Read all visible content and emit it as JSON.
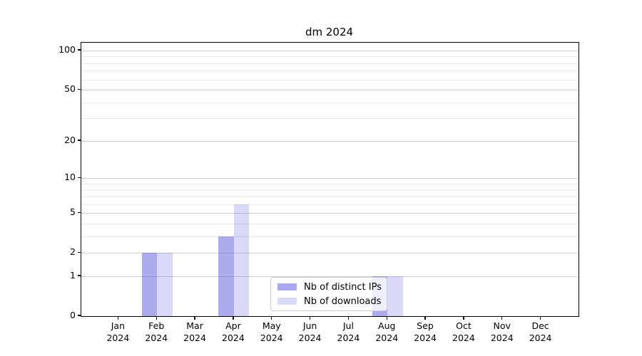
{
  "chart_data": {
    "type": "bar",
    "title": "dm 2024",
    "categories": [
      "Jan",
      "Feb",
      "Mar",
      "Apr",
      "May",
      "Jun",
      "Jul",
      "Aug",
      "Sep",
      "Oct",
      "Nov",
      "Dec"
    ],
    "category_year": "2024",
    "series": [
      {
        "name": "Nb of distinct IPs",
        "fill": "rgba(102,102,224,0.55)",
        "legend_color": "#a9a9f1",
        "values": [
          0,
          2,
          0,
          3,
          0,
          0,
          0,
          1,
          0,
          0,
          0,
          0
        ]
      },
      {
        "name": "Nb of downloads",
        "fill": "rgba(102,102,224,0.25)",
        "legend_color": "#d9d9f8",
        "values": [
          0,
          2,
          0,
          6,
          0,
          0,
          0,
          1,
          0,
          0,
          0,
          0
        ]
      }
    ],
    "xlabel": "",
    "ylabel": "",
    "y_axis": {
      "scale": "log10(value+1)",
      "min": 0,
      "max": 100,
      "tick_values": [
        0,
        1,
        2,
        5,
        10,
        20,
        50,
        100
      ],
      "minor_gridline_values": [
        3,
        4,
        6,
        7,
        8,
        9,
        30,
        40,
        60,
        70,
        80,
        90
      ]
    },
    "grid": true,
    "legend_position": "lower center",
    "colors": {
      "bar_dark": "#a9a9f1",
      "bar_light": "#d9d9f8",
      "grid_major": "#cdcdcd",
      "grid_minor": "#e9e9e9",
      "axis": "#000000",
      "background": "#ffffff"
    }
  }
}
